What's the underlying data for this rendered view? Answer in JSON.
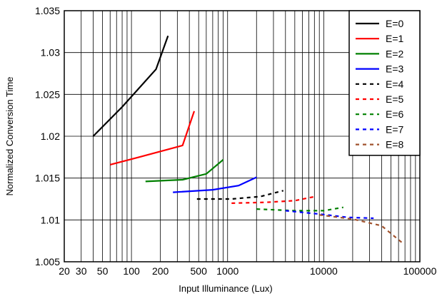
{
  "chart_data": {
    "type": "line",
    "title": "",
    "xlabel": "Input Illuminance (Lux)",
    "ylabel": "Normalized Conversion Time",
    "xscale": "log",
    "xlim": [
      20,
      100000
    ],
    "ylim": [
      1.005,
      1.035
    ],
    "grid": true,
    "legend_position": "top-right",
    "x_ticks": [
      {
        "value": 20,
        "label": "20"
      },
      {
        "value": 30,
        "label": "30"
      },
      {
        "value": 50,
        "label": "50"
      },
      {
        "value": 100,
        "label": "100"
      },
      {
        "value": 200,
        "label": "200"
      },
      {
        "value": 500,
        "label": "500"
      },
      {
        "value": 1000,
        "label": "1000"
      },
      {
        "value": 10000,
        "label": "10000"
      },
      {
        "value": 100000,
        "label": "100000"
      }
    ],
    "y_ticks": [
      {
        "value": 1.005,
        "label": "1.005"
      },
      {
        "value": 1.01,
        "label": "1.01"
      },
      {
        "value": 1.015,
        "label": "1.015"
      },
      {
        "value": 1.02,
        "label": "1.02"
      },
      {
        "value": 1.025,
        "label": "1.025"
      },
      {
        "value": 1.03,
        "label": "1.03"
      },
      {
        "value": 1.035,
        "label": "1.035"
      }
    ],
    "series": [
      {
        "name": "E=0",
        "color": "#000000",
        "dash": false,
        "points": [
          [
            40,
            1.02
          ],
          [
            80,
            1.0235
          ],
          [
            180,
            1.028
          ],
          [
            240,
            1.032
          ]
        ]
      },
      {
        "name": "E=1",
        "color": "#ff0000",
        "dash": false,
        "points": [
          [
            60,
            1.0166
          ],
          [
            120,
            1.0175
          ],
          [
            340,
            1.0189
          ],
          [
            450,
            1.023
          ]
        ]
      },
      {
        "name": "E=2",
        "color": "#008000",
        "dash": false,
        "points": [
          [
            140,
            1.0146
          ],
          [
            340,
            1.0148
          ],
          [
            600,
            1.0155
          ],
          [
            900,
            1.0172
          ]
        ]
      },
      {
        "name": "E=3",
        "color": "#0000ff",
        "dash": false,
        "points": [
          [
            270,
            1.0133
          ],
          [
            700,
            1.0136
          ],
          [
            1300,
            1.0141
          ],
          [
            2000,
            1.0151
          ]
        ]
      },
      {
        "name": "E=4",
        "color": "#000000",
        "dash": true,
        "points": [
          [
            480,
            1.0125
          ],
          [
            1100,
            1.0125
          ],
          [
            2200,
            1.0128
          ],
          [
            3800,
            1.0135
          ]
        ]
      },
      {
        "name": "E=5",
        "color": "#ff0000",
        "dash": true,
        "points": [
          [
            1100,
            1.012
          ],
          [
            2500,
            1.0121
          ],
          [
            5000,
            1.0123
          ],
          [
            8200,
            1.0128
          ]
        ]
      },
      {
        "name": "E=6",
        "color": "#008000",
        "dash": true,
        "points": [
          [
            2000,
            1.0113
          ],
          [
            5000,
            1.0111
          ],
          [
            10000,
            1.0111
          ],
          [
            16000,
            1.0115
          ]
        ]
      },
      {
        "name": "E=7",
        "color": "#0000ff",
        "dash": true,
        "points": [
          [
            4000,
            1.0111
          ],
          [
            9000,
            1.0107
          ],
          [
            18000,
            1.0103
          ],
          [
            33000,
            1.0102
          ]
        ]
      },
      {
        "name": "E=8",
        "color": "#a0522d",
        "dash": true,
        "points": [
          [
            9000,
            1.0106
          ],
          [
            20000,
            1.0101
          ],
          [
            40000,
            1.0093
          ],
          [
            65000,
            1.0073
          ]
        ]
      }
    ]
  }
}
